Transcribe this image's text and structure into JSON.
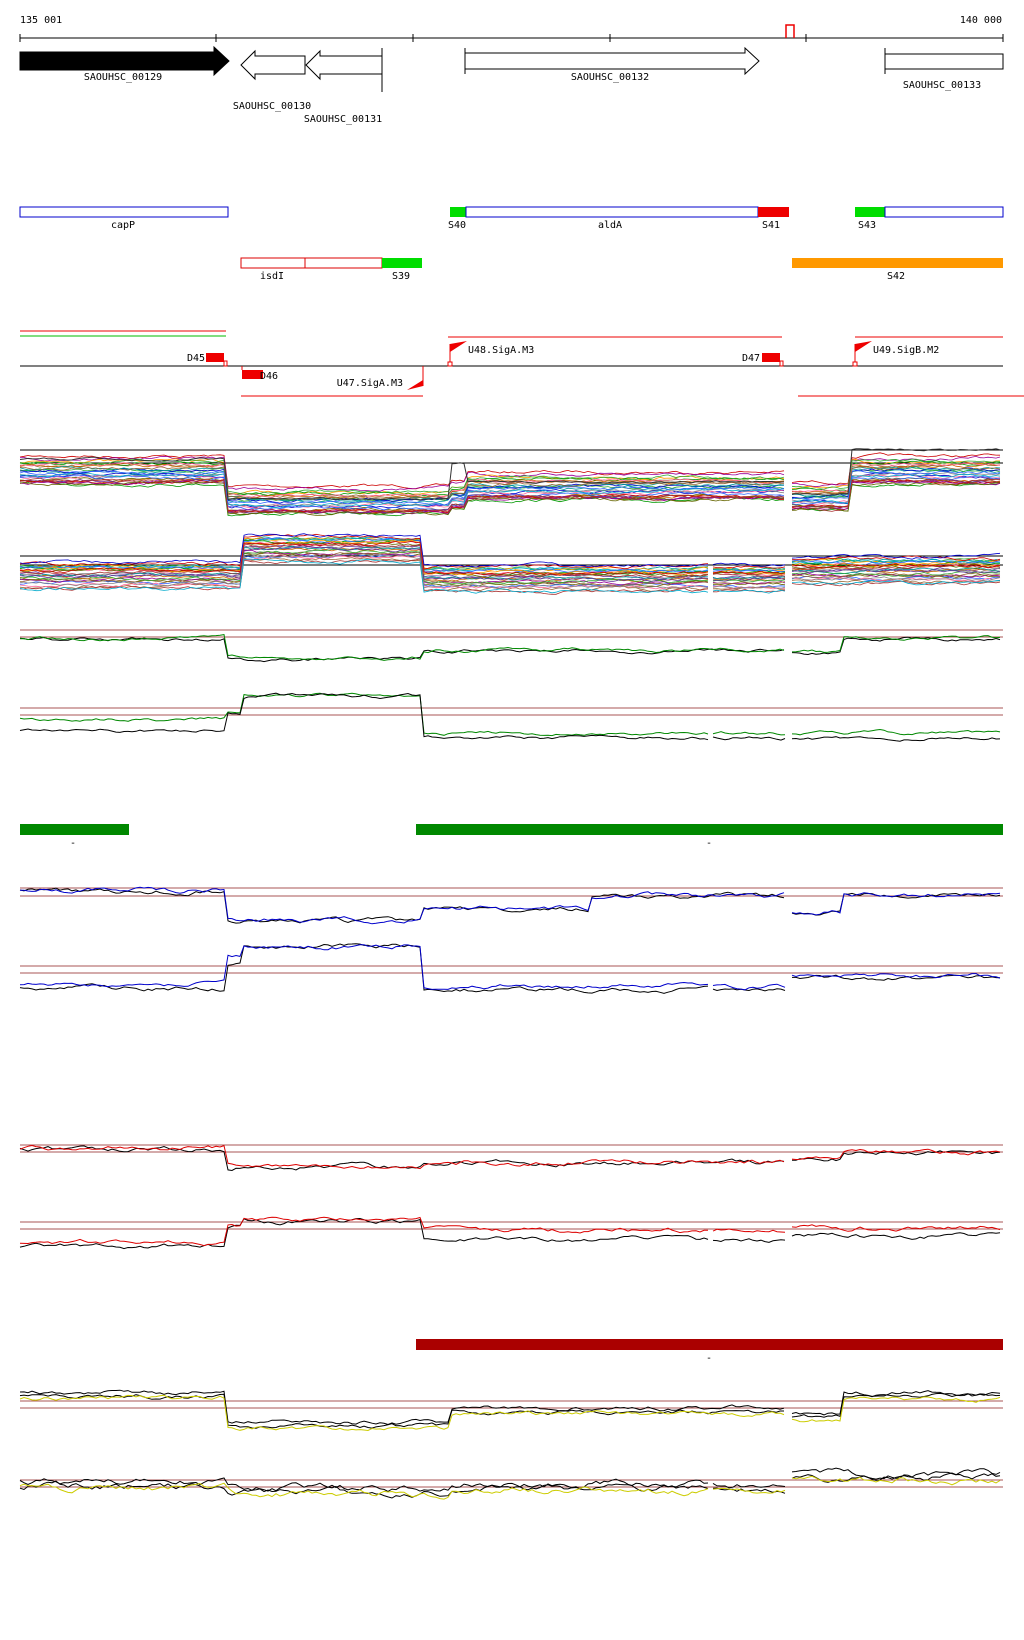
{
  "ruler": {
    "start_label": "135 001",
    "end_label": "140 000"
  },
  "genes": [
    {
      "id": "SAOUHSC_00129",
      "strand": "+",
      "style": "filled"
    },
    {
      "id": "SAOUHSC_00130",
      "strand": "-",
      "style": "outline"
    },
    {
      "id": "SAOUHSC_00131",
      "strand": "-",
      "style": "outline"
    },
    {
      "id": "SAOUHSC_00132",
      "strand": "+",
      "style": "outline"
    },
    {
      "id": "SAOUHSC_00133",
      "strand": "+",
      "style": "outline"
    }
  ],
  "annotations_forward": [
    "capP",
    "S40",
    "aldA",
    "S41",
    "S43"
  ],
  "annotations_reverse": [
    "isdI",
    "S39",
    "S42"
  ],
  "promoters_terminators": [
    "D45",
    "D46",
    "U47.SigA.M3",
    "U48.SigA.M3",
    "D47",
    "U49.SigB.M2"
  ],
  "condition_blocks": [
    "-",
    "-",
    "-"
  ],
  "colors": {
    "gene_fill": "#000000",
    "forward_annotation": "#0000cc",
    "reverse_annotation": "#dd0000",
    "start_marker": "#00dd00",
    "end_marker": "#ee0000",
    "orange_segment": "#ff9900",
    "green_block": "#008800",
    "dark_red_block": "#aa0000",
    "blue_profile": "#0000cc",
    "red_profile": "#dd0000",
    "yellow_profile": "#cccc00",
    "green_profile": "#008800",
    "threshold_line": "#aa5555"
  }
}
